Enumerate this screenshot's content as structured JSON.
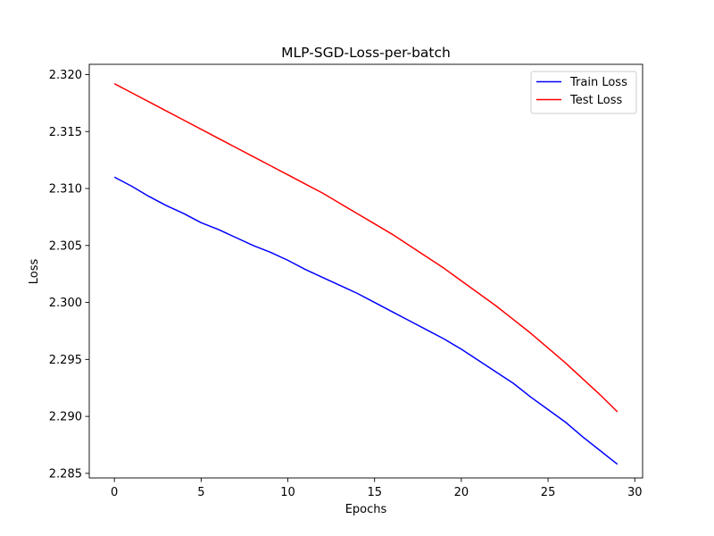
{
  "chart_data": {
    "type": "line",
    "title": "MLP-SGD-Loss-per-batch",
    "xlabel": "Epochs",
    "ylabel": "Loss",
    "xlim": [
      -1.45,
      30.45
    ],
    "ylim": [
      2.2846,
      2.3209
    ],
    "xticks": [
      0,
      5,
      10,
      15,
      20,
      25,
      30
    ],
    "yticks": [
      2.285,
      2.29,
      2.295,
      2.3,
      2.305,
      2.31,
      2.315,
      2.32
    ],
    "ytick_labels": [
      "2.285",
      "2.290",
      "2.295",
      "2.300",
      "2.305",
      "2.310",
      "2.315",
      "2.320"
    ],
    "grid": false,
    "legend_position": "top-right",
    "x": [
      0,
      1,
      2,
      3,
      4,
      5,
      6,
      7,
      8,
      9,
      10,
      11,
      12,
      13,
      14,
      15,
      16,
      17,
      18,
      19,
      20,
      21,
      22,
      23,
      24,
      25,
      26,
      27,
      28,
      29
    ],
    "series": [
      {
        "name": "Train Loss",
        "color": "#0000ff",
        "values": [
          2.311,
          2.3102,
          2.3093,
          2.3085,
          2.3078,
          2.307,
          2.3064,
          2.3057,
          2.305,
          2.3044,
          2.3037,
          2.3029,
          2.3022,
          2.3015,
          2.3008,
          2.3,
          2.2992,
          2.2984,
          2.2976,
          2.2968,
          2.2959,
          2.2949,
          2.2939,
          2.2929,
          2.2917,
          2.2906,
          2.2895,
          2.2882,
          2.287,
          2.2858
        ]
      },
      {
        "name": "Test Loss",
        "color": "#ff0000",
        "values": [
          2.3192,
          2.3184,
          2.3176,
          2.3168,
          2.316,
          2.3152,
          2.3144,
          2.3136,
          2.3128,
          2.312,
          2.3112,
          2.3104,
          2.3096,
          2.3087,
          2.3078,
          2.3069,
          2.306,
          2.305,
          2.304,
          2.303,
          2.3019,
          2.3008,
          2.2997,
          2.2985,
          2.2973,
          2.296,
          2.2947,
          2.2933,
          2.2919,
          2.2904
        ]
      }
    ]
  }
}
